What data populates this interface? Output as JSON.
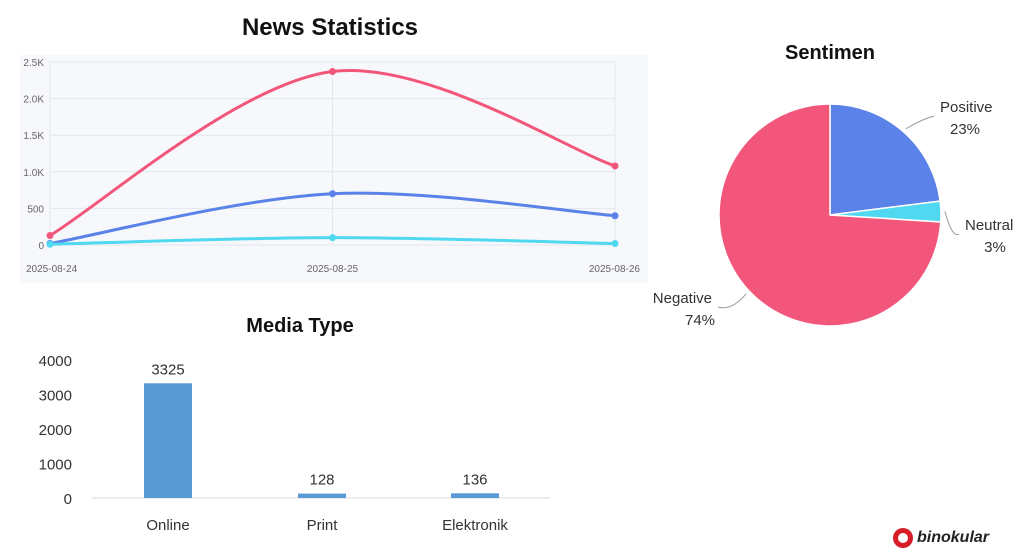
{
  "brand": {
    "name": "binokular",
    "accent": "#d71e28"
  },
  "chart_data": [
    {
      "id": "news-statistics",
      "type": "line",
      "title": "News Statistics",
      "x": [
        "2025-08-24",
        "2025-08-25",
        "2025-08-26"
      ],
      "yticks": [
        "0",
        "500",
        "1.0K",
        "1.5K",
        "2.0K",
        "2.5K"
      ],
      "ylim": [
        0,
        2500
      ],
      "grid": true,
      "series": [
        {
          "color": "#f2577b",
          "values": [
            130,
            2370,
            1080
          ]
        },
        {
          "color": "#5b82e8",
          "values": [
            20,
            700,
            400
          ]
        },
        {
          "color": "#4fd8f0",
          "values": [
            10,
            100,
            20
          ]
        }
      ]
    },
    {
      "id": "sentimen",
      "type": "pie",
      "title": "Sentimen",
      "slices": [
        {
          "label": "Positive",
          "value": 23,
          "value_label": "23%",
          "color": "#5b82e8"
        },
        {
          "label": "Neutral",
          "value": 3,
          "value_label": "3%",
          "color": "#4fd8f0"
        },
        {
          "label": "Negative",
          "value": 74,
          "value_label": "74%",
          "color": "#f2577b"
        }
      ]
    },
    {
      "id": "media-type",
      "type": "bar",
      "title": "Media Type",
      "categories": [
        "Online",
        "Print",
        "Elektronik"
      ],
      "values": [
        3325,
        128,
        136
      ],
      "value_labels": [
        "3325",
        "128",
        "136"
      ],
      "yticks": [
        "0",
        "1000",
        "2000",
        "3000",
        "4000"
      ],
      "ylim": [
        0,
        4000
      ],
      "color": "#5b9bd5",
      "grid": false
    }
  ]
}
